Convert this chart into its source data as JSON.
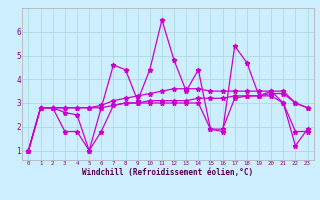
{
  "xlabel": "Windchill (Refroidissement éolien,°C)",
  "background_color": "#cceeff",
  "grid_color": "#aadddd",
  "line_color": "#cc00cc",
  "xlim_min": -0.5,
  "xlim_max": 23.5,
  "ylim_min": 0.6,
  "ylim_max": 7.0,
  "xticks": [
    0,
    1,
    2,
    3,
    4,
    5,
    6,
    7,
    8,
    9,
    10,
    11,
    12,
    13,
    14,
    15,
    16,
    17,
    18,
    19,
    20,
    21,
    22,
    23
  ],
  "yticks": [
    1,
    2,
    3,
    4,
    5,
    6
  ],
  "series1_y": [
    1.0,
    2.8,
    2.8,
    2.6,
    2.5,
    1.0,
    2.8,
    4.6,
    4.4,
    3.1,
    4.4,
    6.5,
    4.8,
    3.5,
    4.4,
    1.9,
    1.8,
    5.4,
    4.7,
    3.3,
    3.5,
    3.0,
    1.2,
    1.9
  ],
  "series2_y": [
    1.0,
    2.8,
    2.8,
    1.8,
    1.8,
    1.0,
    1.8,
    2.9,
    3.0,
    3.0,
    3.0,
    3.0,
    3.0,
    3.0,
    3.0,
    1.9,
    1.9,
    3.2,
    3.3,
    3.3,
    3.3,
    3.0,
    1.8,
    1.8
  ],
  "series3_y": [
    1.0,
    2.8,
    2.8,
    2.8,
    2.8,
    2.8,
    2.8,
    2.9,
    3.0,
    3.0,
    3.1,
    3.1,
    3.1,
    3.1,
    3.2,
    3.2,
    3.2,
    3.3,
    3.3,
    3.3,
    3.4,
    3.4,
    3.0,
    2.8
  ],
  "series4_y": [
    1.0,
    2.8,
    2.8,
    2.8,
    2.8,
    2.8,
    2.9,
    3.1,
    3.2,
    3.3,
    3.4,
    3.5,
    3.6,
    3.6,
    3.6,
    3.5,
    3.5,
    3.5,
    3.5,
    3.5,
    3.5,
    3.5,
    3.0,
    2.8
  ],
  "tick_label_color": "#880088",
  "xlabel_color": "#550055",
  "xlabel_fontsize": 5.5,
  "tick_fontsize_x": 4.2,
  "tick_fontsize_y": 5.5
}
